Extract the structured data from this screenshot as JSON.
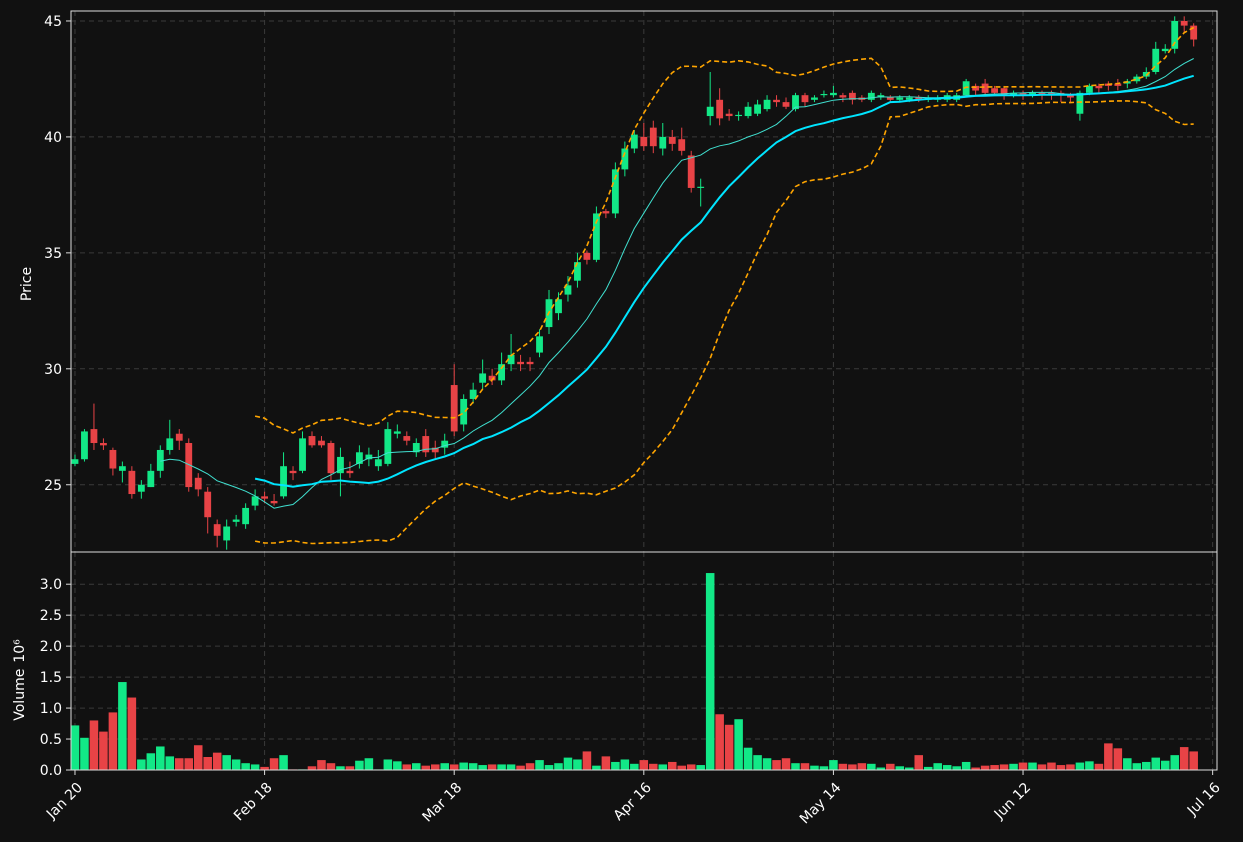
{
  "chart_data": {
    "type": "candlestick",
    "ylabel": "Price",
    "volume_ylabel": "Volume",
    "volume_scale": "10⁶",
    "xlim": [
      -0.42,
      120.46
    ],
    "xticks": [
      {
        "value": 0,
        "label": "Jan 20"
      },
      {
        "value": 20,
        "label": "Feb 18"
      },
      {
        "value": 40,
        "label": "Mar 18"
      },
      {
        "value": 60,
        "label": "Apr 16"
      },
      {
        "value": 80,
        "label": "May 14"
      },
      {
        "value": 100,
        "label": "Jun 12"
      },
      {
        "value": 120,
        "label": "Jul 16"
      }
    ],
    "ylim": [
      22.1,
      45.43
    ],
    "yticks": [
      25,
      30,
      35,
      40,
      45
    ],
    "volume_ylim": [
      0,
      3.52
    ],
    "volume_yticks": [
      {
        "value": 0,
        "label": "0.0"
      },
      0.5,
      {
        "value": 1,
        "label": "1.0"
      },
      1.5,
      {
        "value": 2,
        "label": "2.0"
      },
      2.5,
      {
        "value": 3,
        "label": "3.0"
      }
    ],
    "grid": true,
    "up_color": "#12e887",
    "down_color": "#e84346",
    "moving_averages": [
      {
        "period": 10,
        "color": "#40e0d0"
      },
      {
        "period": 20,
        "color": "#00e5ff"
      }
    ],
    "bollinger": {
      "period": 20,
      "std": 2,
      "color": "#ffa500"
    },
    "open": [
      25.9,
      26.1,
      27.4,
      26.8,
      26.5,
      25.6,
      25.6,
      24.7,
      24.9,
      25.6,
      26.5,
      27.2,
      26.8,
      25.3,
      24.7,
      23.3,
      22.6,
      23.4,
      23.3,
      24.1,
      24.5,
      24.3,
      24.5,
      25.6,
      25.6,
      27.1,
      26.9,
      26.8,
      25.5,
      25.6,
      25.9,
      26.1,
      25.8,
      25.9,
      27.2,
      27.1,
      26.4,
      27.1,
      26.6,
      26.6,
      29.3,
      27.6,
      28.7,
      29.4,
      29.7,
      29.5,
      30.2,
      30.3,
      30.3,
      30.7,
      31.8,
      32.4,
      33.2,
      33.8,
      35.0,
      34.7,
      36.8,
      36.7,
      38.6,
      39.5,
      40.0,
      40.4,
      39.5,
      40.0,
      39.9,
      39.2,
      37.8,
      40.9,
      41.6,
      41.0,
      40.9,
      40.9,
      41.0,
      41.2,
      41.6,
      41.5,
      41.2,
      41.8,
      41.6,
      41.8,
      41.8,
      41.8,
      41.9,
      41.7,
      41.6,
      41.7,
      41.7,
      41.6,
      41.6,
      41.7,
      41.6,
      41.6,
      41.6,
      41.6,
      41.8,
      42.2,
      42.3,
      42.1,
      42.1,
      41.8,
      41.9,
      41.8,
      41.9,
      41.9,
      41.9,
      41.8,
      41.0,
      41.9,
      42.2,
      42.3,
      42.3,
      42.3,
      42.4,
      42.6,
      42.8,
      43.7,
      43.8,
      45.0,
      44.8
    ],
    "high": [
      26.3,
      27.4,
      28.5,
      27.0,
      26.6,
      26.0,
      25.8,
      25.2,
      25.9,
      26.7,
      27.8,
      27.4,
      27.0,
      25.5,
      24.9,
      23.5,
      23.5,
      23.7,
      24.2,
      24.8,
      24.7,
      24.6,
      26.4,
      25.8,
      27.3,
      27.3,
      27.1,
      26.9,
      26.6,
      26.0,
      26.7,
      26.6,
      26.5,
      27.7,
      27.6,
      27.3,
      27.0,
      27.4,
      26.9,
      27.2,
      30.2,
      28.9,
      29.4,
      30.4,
      30.0,
      30.7,
      31.5,
      30.6,
      30.5,
      31.7,
      33.4,
      33.3,
      34.0,
      35.0,
      35.1,
      37.0,
      36.9,
      38.9,
      39.8,
      40.3,
      40.6,
      40.7,
      40.6,
      40.3,
      40.4,
      39.4,
      38.2,
      42.8,
      42.1,
      41.2,
      41.1,
      41.5,
      41.6,
      41.8,
      41.8,
      41.7,
      41.9,
      41.9,
      41.8,
      42.0,
      42.2,
      41.9,
      42.0,
      41.8,
      42.0,
      41.9,
      41.8,
      41.8,
      41.8,
      41.8,
      41.8,
      41.8,
      41.9,
      41.9,
      42.5,
      42.3,
      42.5,
      42.2,
      42.2,
      42.0,
      42.0,
      42.0,
      42.0,
      42.0,
      42.0,
      41.9,
      42.0,
      42.3,
      42.3,
      42.4,
      42.5,
      42.5,
      42.7,
      43.0,
      44.1,
      44.0,
      45.2,
      45.2,
      44.9
    ],
    "low": [
      25.8,
      26.0,
      26.5,
      26.5,
      25.4,
      25.1,
      24.4,
      24.4,
      24.9,
      25.3,
      26.3,
      26.5,
      24.7,
      24.5,
      22.9,
      22.3,
      22.2,
      23.2,
      23.1,
      23.9,
      24.2,
      24.1,
      24.4,
      25.2,
      25.5,
      26.6,
      26.6,
      25.2,
      24.5,
      25.3,
      25.7,
      25.8,
      25.6,
      25.8,
      27.0,
      26.7,
      26.2,
      26.2,
      26.1,
      26.3,
      27.1,
      27.3,
      28.5,
      29.1,
      29.3,
      29.3,
      29.9,
      29.9,
      29.9,
      30.5,
      31.5,
      32.1,
      32.9,
      33.5,
      34.5,
      34.6,
      36.5,
      36.5,
      38.3,
      39.3,
      39.4,
      39.3,
      39.2,
      39.4,
      39.2,
      37.6,
      37.0,
      40.5,
      40.5,
      40.7,
      40.7,
      40.8,
      40.9,
      41.1,
      41.3,
      41.2,
      41.1,
      41.3,
      41.5,
      41.7,
      41.7,
      41.5,
      41.4,
      41.5,
      41.5,
      41.6,
      41.5,
      41.5,
      41.5,
      41.5,
      41.5,
      41.5,
      41.5,
      41.5,
      41.7,
      41.8,
      41.8,
      41.8,
      41.6,
      41.7,
      41.6,
      41.7,
      41.6,
      41.6,
      41.5,
      41.5,
      40.7,
      41.8,
      41.9,
      42.0,
      42.0,
      42.1,
      42.3,
      42.5,
      42.7,
      43.6,
      43.6,
      44.5,
      43.9
    ],
    "close": [
      26.1,
      27.3,
      26.8,
      26.7,
      25.7,
      25.8,
      24.6,
      25.0,
      25.6,
      26.5,
      27.0,
      26.9,
      24.9,
      24.8,
      23.6,
      22.8,
      23.2,
      23.5,
      24.0,
      24.5,
      24.4,
      24.2,
      25.8,
      25.5,
      27.0,
      26.7,
      26.7,
      25.5,
      26.2,
      25.5,
      26.4,
      26.3,
      26.1,
      27.4,
      27.3,
      26.9,
      26.8,
      26.4,
      26.4,
      26.9,
      27.3,
      28.7,
      29.1,
      29.8,
      29.5,
      30.2,
      30.6,
      30.2,
      30.2,
      31.4,
      33.0,
      33.0,
      33.6,
      34.6,
      34.7,
      36.7,
      36.7,
      38.6,
      39.5,
      40.1,
      39.6,
      39.6,
      40.0,
      39.7,
      39.4,
      37.8,
      37.85,
      41.3,
      40.8,
      40.9,
      40.95,
      41.3,
      41.4,
      41.6,
      41.5,
      41.3,
      41.8,
      41.5,
      41.7,
      41.85,
      41.9,
      41.7,
      41.6,
      41.6,
      41.9,
      41.8,
      41.6,
      41.7,
      41.7,
      41.6,
      41.7,
      41.7,
      41.8,
      41.8,
      42.4,
      42.0,
      41.9,
      41.9,
      41.8,
      41.9,
      41.8,
      41.9,
      41.8,
      41.8,
      41.8,
      41.7,
      41.9,
      42.2,
      42.1,
      42.2,
      42.2,
      42.4,
      42.6,
      42.8,
      43.8,
      43.8,
      45.0,
      44.8,
      44.2
    ],
    "volume": [
      0.72,
      0.52,
      0.8,
      0.62,
      0.93,
      1.42,
      1.17,
      0.17,
      0.27,
      0.38,
      0.22,
      0.19,
      0.19,
      0.4,
      0.21,
      0.28,
      0.24,
      0.17,
      0.11,
      0.09,
      0.05,
      0.19,
      0.24,
      0.01,
      0.01,
      0.06,
      0.16,
      0.11,
      0.06,
      0.06,
      0.15,
      0.19,
      0.01,
      0.17,
      0.14,
      0.09,
      0.11,
      0.07,
      0.09,
      0.11,
      0.09,
      0.12,
      0.11,
      0.08,
      0.09,
      0.09,
      0.09,
      0.07,
      0.11,
      0.16,
      0.08,
      0.11,
      0.2,
      0.17,
      0.3,
      0.07,
      0.22,
      0.13,
      0.17,
      0.1,
      0.16,
      0.1,
      0.09,
      0.13,
      0.07,
      0.09,
      0.08,
      3.18,
      0.9,
      0.73,
      0.82,
      0.36,
      0.24,
      0.19,
      0.16,
      0.19,
      0.11,
      0.11,
      0.07,
      0.06,
      0.16,
      0.1,
      0.09,
      0.11,
      0.1,
      0.04,
      0.1,
      0.06,
      0.04,
      0.24,
      0.05,
      0.11,
      0.08,
      0.06,
      0.13,
      0.04,
      0.07,
      0.08,
      0.09,
      0.1,
      0.12,
      0.12,
      0.09,
      0.12,
      0.08,
      0.09,
      0.12,
      0.14,
      0.1,
      0.43,
      0.35,
      0.19,
      0.11,
      0.13,
      0.2,
      0.15,
      0.24,
      0.37,
      0.3
    ]
  }
}
